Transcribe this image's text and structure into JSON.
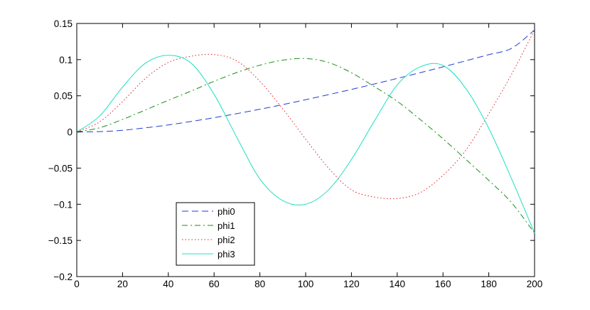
{
  "chart_data": {
    "type": "line",
    "title": "",
    "xlabel": "",
    "ylabel": "",
    "xlim": [
      0,
      200
    ],
    "ylim": [
      -0.2,
      0.15
    ],
    "xticks": [
      0,
      20,
      40,
      60,
      80,
      100,
      120,
      140,
      160,
      180,
      200
    ],
    "xtick_labels": [
      "0",
      "20",
      "40",
      "60",
      "80",
      "100",
      "120",
      "140",
      "160",
      "180",
      "200"
    ],
    "yticks": [
      0.15,
      0.1,
      0.05,
      0,
      -0.05,
      -0.1,
      -0.15,
      -0.2
    ],
    "ytick_labels": [
      "0.15",
      "0.1",
      "0.05",
      "0",
      "−0.05",
      "−0.1",
      "−0.15",
      "−0.2"
    ],
    "grid": false,
    "legend_position": "lower-left",
    "series": [
      {
        "name": "phi0",
        "color": "#1f3fd6",
        "style": "dashed",
        "x": [
          0,
          10,
          20,
          30,
          40,
          50,
          60,
          70,
          80,
          90,
          100,
          110,
          120,
          130,
          140,
          150,
          160,
          170,
          180,
          190,
          200
        ],
        "y": [
          0,
          0.0004,
          0.0023,
          0.0057,
          0.0097,
          0.0145,
          0.0197,
          0.0254,
          0.0314,
          0.0378,
          0.0446,
          0.0516,
          0.0588,
          0.0663,
          0.074,
          0.0819,
          0.09,
          0.0984,
          0.1069,
          0.1157,
          0.141
        ]
      },
      {
        "name": "phi1",
        "color": "#1a8f1a",
        "style": "dashdot",
        "x": [
          0,
          10,
          20,
          30,
          40,
          50,
          60,
          70,
          80,
          90,
          100,
          110,
          120,
          130,
          140,
          150,
          160,
          170,
          180,
          190,
          200
        ],
        "y": [
          0,
          0.0058,
          0.0173,
          0.0304,
          0.0438,
          0.0566,
          0.07,
          0.0823,
          0.0922,
          0.0993,
          0.1015,
          0.096,
          0.0818,
          0.0627,
          0.0424,
          0.0173,
          -0.0095,
          -0.038,
          -0.067,
          -0.098,
          -0.14
        ]
      },
      {
        "name": "phi2",
        "color": "#e0202a",
        "style": "dotted",
        "x": [
          0,
          10,
          20,
          30,
          40,
          50,
          60,
          70,
          80,
          90,
          100,
          110,
          120,
          130,
          140,
          150,
          160,
          170,
          180,
          190,
          200
        ],
        "y": [
          0,
          0.014,
          0.042,
          0.074,
          0.096,
          0.1047,
          0.107,
          0.098,
          0.07,
          0.032,
          -0.01,
          -0.05,
          -0.08,
          -0.09,
          -0.092,
          -0.084,
          -0.06,
          -0.025,
          0.025,
          0.08,
          0.141
        ]
      },
      {
        "name": "phi3",
        "color": "#1ee0c0",
        "style": "solid",
        "x": [
          0,
          10,
          20,
          30,
          40,
          50,
          60,
          70,
          80,
          90,
          100,
          110,
          120,
          130,
          140,
          150,
          160,
          170,
          180,
          190,
          200
        ],
        "y": [
          0,
          0.022,
          0.062,
          0.095,
          0.106,
          0.095,
          0.052,
          -0.008,
          -0.065,
          -0.095,
          -0.1,
          -0.08,
          -0.038,
          0.015,
          0.065,
          0.09,
          0.092,
          0.06,
          0.005,
          -0.065,
          -0.14
        ]
      }
    ]
  }
}
